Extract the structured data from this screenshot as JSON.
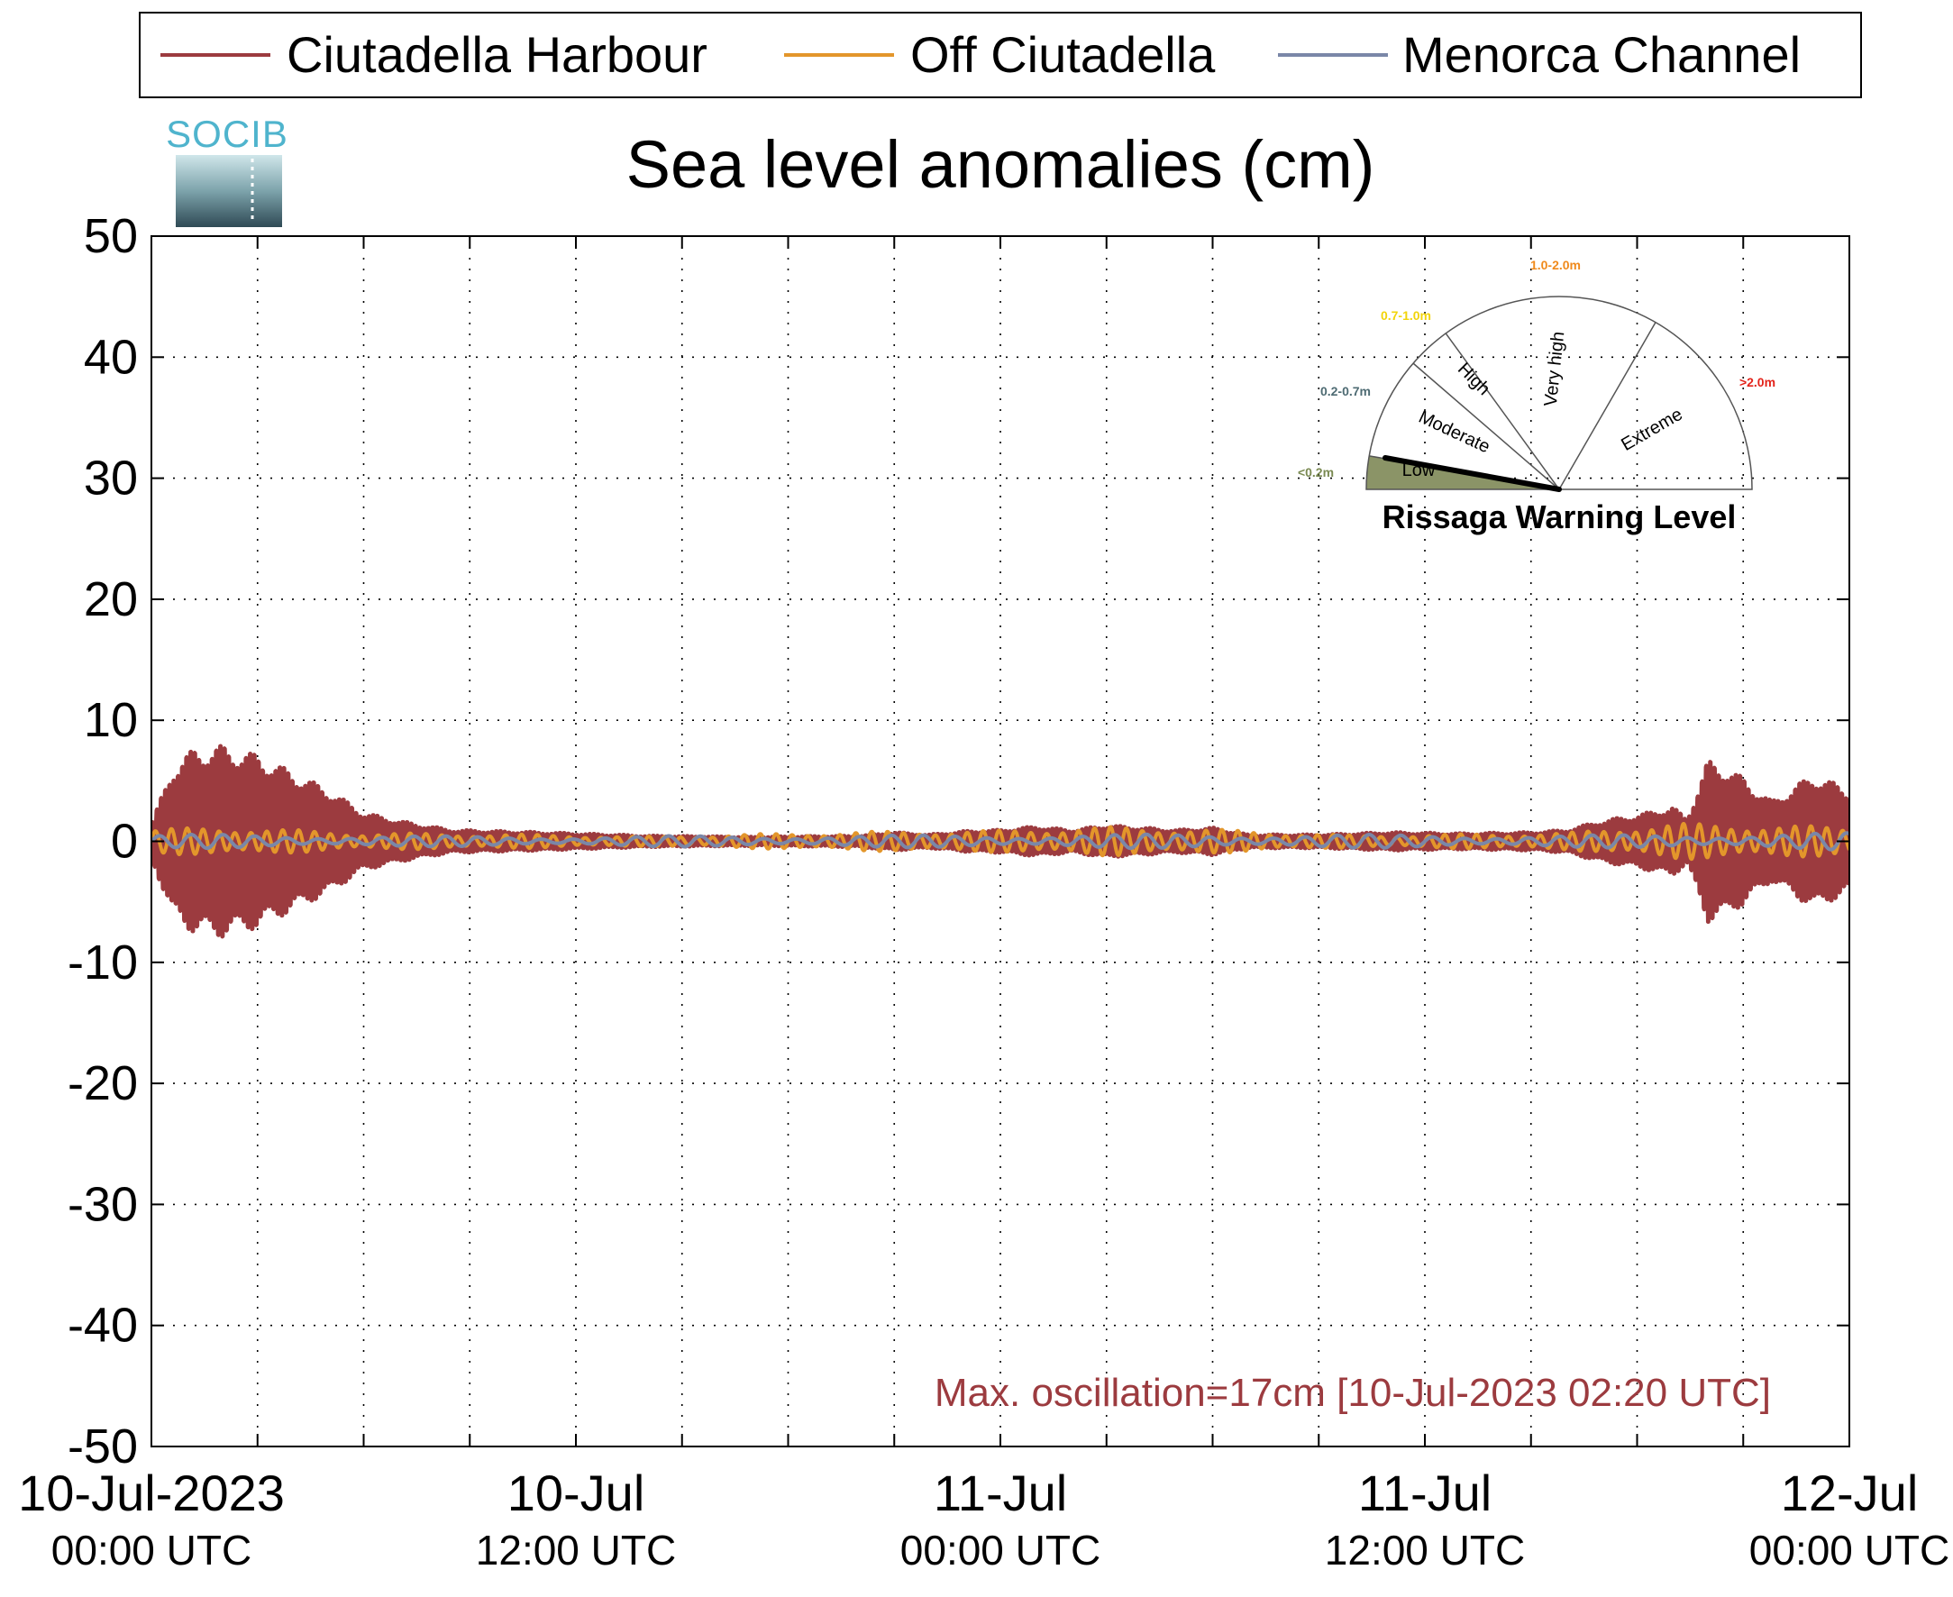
{
  "chart_data": {
    "type": "line",
    "title": "Sea level anomalies (cm)",
    "logo_text": "SOCIB",
    "ylim": [
      -50,
      50
    ],
    "y_ticks": [
      50,
      40,
      30,
      20,
      10,
      0,
      -10,
      -20,
      -30,
      -40,
      -50
    ],
    "y_tick_labels": [
      "50",
      "40",
      "30",
      "20",
      "10",
      "0",
      "-10",
      "-20",
      "-30",
      "-40",
      "-50"
    ],
    "x_range_hours": [
      0,
      48
    ],
    "x_tick_labels": [
      {
        "hour": 0,
        "line1": "10-Jul-2023",
        "line2": "00:00 UTC"
      },
      {
        "hour": 12,
        "line1": "10-Jul",
        "line2": "12:00 UTC"
      },
      {
        "hour": 24,
        "line1": "11-Jul",
        "line2": "00:00 UTC"
      },
      {
        "hour": 36,
        "line1": "11-Jul",
        "line2": "12:00 UTC"
      },
      {
        "hour": 48,
        "line1": "12-Jul",
        "line2": "00:00 UTC"
      }
    ],
    "grid": true,
    "legend_position": "top",
    "series": [
      {
        "name": "Ciutadella Harbour",
        "color": "#9c3b3f"
      },
      {
        "name": "Off Ciutadella",
        "color": "#e3962b"
      },
      {
        "name": "Menorca Channel",
        "color": "#7a87a8"
      }
    ],
    "amplitude_envelope_cm": {
      "Ciutadella Harbour": [
        [
          0.0,
          1.5
        ],
        [
          0.3,
          4.0
        ],
        [
          0.6,
          6.5
        ],
        [
          1.2,
          8.0
        ],
        [
          2.0,
          8.3
        ],
        [
          3.0,
          7.5
        ],
        [
          4.0,
          6.0
        ],
        [
          5.0,
          4.5
        ],
        [
          6.0,
          2.5
        ],
        [
          7.0,
          1.8
        ],
        [
          7.5,
          1.5
        ],
        [
          8.5,
          1.0
        ],
        [
          11.0,
          0.8
        ],
        [
          14.0,
          0.5
        ],
        [
          17.0,
          0.4
        ],
        [
          20.0,
          0.5
        ],
        [
          21.0,
          0.8
        ],
        [
          22.0,
          0.6
        ],
        [
          23.0,
          0.9
        ],
        [
          24.0,
          1.0
        ],
        [
          25.0,
          1.3
        ],
        [
          26.0,
          1.0
        ],
        [
          27.0,
          1.4
        ],
        [
          29.0,
          1.0
        ],
        [
          30.0,
          1.2
        ],
        [
          31.0,
          0.6
        ],
        [
          33.0,
          0.6
        ],
        [
          35.0,
          0.8
        ],
        [
          37.0,
          0.7
        ],
        [
          39.0,
          0.8
        ],
        [
          40.0,
          1.0
        ],
        [
          41.0,
          1.8
        ],
        [
          42.0,
          2.3
        ],
        [
          43.0,
          3.0
        ],
        [
          43.4,
          2.0
        ],
        [
          44.0,
          7.0
        ],
        [
          44.5,
          6.5
        ],
        [
          45.0,
          5.5
        ],
        [
          45.8,
          3.5
        ],
        [
          46.3,
          4.5
        ],
        [
          47.0,
          5.8
        ],
        [
          48.0,
          4.5
        ]
      ],
      "Off Ciutadella": [
        [
          0.0,
          1.0
        ],
        [
          2.0,
          1.2
        ],
        [
          6.0,
          0.7
        ],
        [
          10.0,
          0.6
        ],
        [
          14.0,
          0.4
        ],
        [
          20.0,
          0.8
        ],
        [
          24.0,
          0.9
        ],
        [
          27.0,
          1.2
        ],
        [
          30.0,
          1.0
        ],
        [
          34.0,
          0.5
        ],
        [
          40.0,
          0.7
        ],
        [
          43.0,
          1.5
        ],
        [
          48.0,
          1.2
        ]
      ],
      "Menorca Channel": [
        [
          0.0,
          0.6
        ],
        [
          10.0,
          0.4
        ],
        [
          20.0,
          0.5
        ],
        [
          30.0,
          0.6
        ],
        [
          40.0,
          0.5
        ],
        [
          48.0,
          0.7
        ]
      ]
    },
    "annotation": "Max. oscillation=17cm [10-Jul-2023 02:20 UTC]"
  },
  "gauge": {
    "title": "Rissaga Warning Level",
    "current_level": "Low",
    "sectors": [
      {
        "label": "Low",
        "range": "<0.2m",
        "range_color": "#7a8a52"
      },
      {
        "label": "Moderate",
        "range": "0.2-0.7m",
        "range_color": "#4e6b73"
      },
      {
        "label": "High",
        "range": "0.7-1.0m",
        "range_color": "#f2d40a"
      },
      {
        "label": "Very high",
        "range": "1.0-2.0m",
        "range_color": "#f08a1c"
      },
      {
        "label": "Extreme",
        "range": ">2.0m",
        "range_color": "#e3231a"
      }
    ],
    "active_fill": "#8b9467"
  }
}
